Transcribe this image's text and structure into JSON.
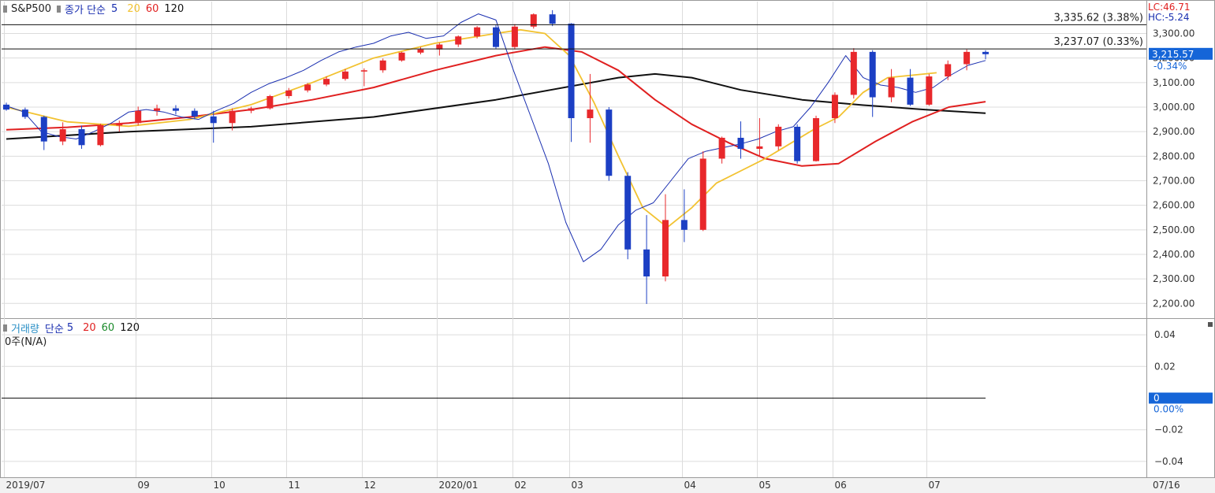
{
  "legend_price": {
    "symbol": "S&P500",
    "ma_label": "종가 단순",
    "ma5": "5",
    "ma20": "20",
    "ma60": "60",
    "ma120": "120"
  },
  "legend_volume": {
    "label": "거래량",
    "ma_label": "단순",
    "ma5": "5",
    "ma20": "20",
    "ma60": "60",
    "ma120": "120",
    "value_note": "0주(N/A)"
  },
  "header_right": {
    "lc": "LC:46.71",
    "hc": "HC:-5.24"
  },
  "colors": {
    "up": "#e8282b",
    "down": "#1c3fc4",
    "ma5": "#1a2fb0",
    "ma20": "#f2c230",
    "ma60": "#e02020",
    "ma120": "#101010",
    "grid": "#dcdcdc",
    "current_badge": "#1565d8",
    "axis_text": "#333333"
  },
  "chart_data": [
    {
      "type": "candlestick",
      "title": "S&P500",
      "x_axis_labels": [
        "2019/07",
        "09",
        "10",
        "11",
        "12",
        "2020/01",
        "02",
        "03",
        "04",
        "05",
        "06",
        "07"
      ],
      "x_axis_current": "07/16",
      "y_ticks": [
        3300,
        3200,
        3100,
        3000,
        2900,
        2800,
        2700,
        2600,
        2500,
        2400,
        2300,
        2200
      ],
      "y_tick_labels": [
        "3,300.00",
        "3,200.00",
        "3,100.00",
        "3,000.00",
        "2,900.00",
        "2,800.00",
        "2,700.00",
        "2,600.00",
        "2,500.00",
        "2,400.00",
        "2,300.00",
        "2,200.00"
      ],
      "ylim": [
        2140,
        3430
      ],
      "grid": true,
      "ohlc_approx_weekly": [
        [
          "2019/07",
          3010,
          3018,
          2985,
          2990
        ],
        [
          "",
          2990,
          2998,
          2952,
          2960
        ],
        [
          "",
          2960,
          2965,
          2825,
          2860
        ],
        [
          "",
          2860,
          2938,
          2845,
          2910
        ],
        [
          "",
          2910,
          2925,
          2830,
          2845
        ],
        [
          "",
          2845,
          2932,
          2840,
          2925
        ],
        [
          "",
          2925,
          2945,
          2900,
          2935
        ],
        [
          "09",
          2935,
          3002,
          2925,
          2985
        ],
        [
          "",
          2985,
          3010,
          2965,
          2995
        ],
        [
          "",
          2995,
          3008,
          2970,
          2985
        ],
        [
          "",
          2985,
          2995,
          2950,
          2962
        ],
        [
          "10",
          2962,
          2985,
          2855,
          2935
        ],
        [
          "",
          2935,
          2995,
          2905,
          2985
        ],
        [
          "",
          2985,
          3002,
          2975,
          2995
        ],
        [
          "",
          2995,
          3050,
          2990,
          3045
        ],
        [
          "11",
          3045,
          3078,
          3035,
          3068
        ],
        [
          "",
          3068,
          3098,
          3060,
          3092
        ],
        [
          "",
          3092,
          3125,
          3085,
          3115
        ],
        [
          "",
          3115,
          3155,
          3108,
          3145
        ],
        [
          "12",
          3145,
          3158,
          3085,
          3150
        ],
        [
          "",
          3150,
          3198,
          3140,
          3190
        ],
        [
          "",
          3190,
          3225,
          3185,
          3222
        ],
        [
          "",
          3222,
          3245,
          3215,
          3235
        ],
        [
          "2020/01",
          3235,
          3262,
          3210,
          3255
        ],
        [
          "",
          3255,
          3292,
          3245,
          3288
        ],
        [
          "",
          3288,
          3330,
          3280,
          3325
        ],
        [
          "",
          3325,
          3335,
          3238,
          3245
        ],
        [
          "02",
          3245,
          3338,
          3235,
          3328
        ],
        [
          "",
          3328,
          3382,
          3320,
          3378
        ],
        [
          "",
          3378,
          3395,
          3330,
          3340
        ],
        [
          "03",
          3340,
          3342,
          2858,
          2955
        ],
        [
          "",
          2955,
          3135,
          2855,
          2990
        ],
        [
          "",
          2990,
          3000,
          2700,
          2720
        ],
        [
          "",
          2720,
          2735,
          2380,
          2420
        ],
        [
          "",
          2420,
          2560,
          2198,
          2310
        ],
        [
          "",
          2310,
          2645,
          2290,
          2540
        ],
        [
          "04",
          2540,
          2665,
          2450,
          2500
        ],
        [
          "",
          2500,
          2820,
          2495,
          2790
        ],
        [
          "",
          2790,
          2880,
          2770,
          2875
        ],
        [
          "",
          2875,
          2942,
          2790,
          2830
        ],
        [
          "05",
          2830,
          2955,
          2800,
          2840
        ],
        [
          "",
          2840,
          2930,
          2825,
          2920
        ],
        [
          "",
          2920,
          2930,
          2770,
          2780
        ],
        [
          "",
          2780,
          2965,
          2778,
          2955
        ],
        [
          "06",
          2955,
          3060,
          2935,
          3050
        ],
        [
          "",
          3050,
          3240,
          3035,
          3225
        ],
        [
          "",
          3225,
          3232,
          2960,
          3040
        ],
        [
          "",
          3040,
          3155,
          3020,
          3120
        ],
        [
          "",
          3120,
          3155,
          3005,
          3010
        ],
        [
          "07",
          3010,
          3135,
          3005,
          3125
        ],
        [
          "",
          3125,
          3190,
          3110,
          3175
        ],
        [
          "",
          3175,
          3235,
          3150,
          3225
        ],
        [
          "07/16",
          3225,
          3232,
          3195,
          3215.57
        ]
      ],
      "ma5": [
        [
          0,
          3005
        ],
        [
          2,
          2980
        ],
        [
          4,
          2900
        ],
        [
          6,
          2880
        ],
        [
          8,
          2870
        ],
        [
          10,
          2900
        ],
        [
          12,
          2935
        ],
        [
          14,
          2980
        ],
        [
          16,
          2990
        ],
        [
          18,
          2980
        ],
        [
          20,
          2960
        ],
        [
          22,
          2950
        ],
        [
          24,
          2985
        ],
        [
          26,
          3015
        ],
        [
          28,
          3060
        ],
        [
          30,
          3095
        ],
        [
          32,
          3120
        ],
        [
          34,
          3150
        ],
        [
          36,
          3190
        ],
        [
          38,
          3225
        ],
        [
          40,
          3245
        ],
        [
          42,
          3260
        ],
        [
          44,
          3290
        ],
        [
          46,
          3305
        ],
        [
          48,
          3280
        ],
        [
          50,
          3290
        ],
        [
          52,
          3345
        ],
        [
          54,
          3380
        ],
        [
          56,
          3355
        ],
        [
          58,
          3150
        ],
        [
          60,
          2960
        ],
        [
          62,
          2770
        ],
        [
          64,
          2530
        ],
        [
          66,
          2370
        ],
        [
          68,
          2420
        ],
        [
          70,
          2520
        ],
        [
          72,
          2580
        ],
        [
          74,
          2610
        ],
        [
          76,
          2700
        ],
        [
          78,
          2790
        ],
        [
          80,
          2820
        ],
        [
          82,
          2835
        ],
        [
          84,
          2850
        ],
        [
          86,
          2870
        ],
        [
          88,
          2900
        ],
        [
          90,
          2920
        ],
        [
          92,
          3000
        ],
        [
          94,
          3100
        ],
        [
          96,
          3210
        ],
        [
          98,
          3120
        ],
        [
          100,
          3090
        ],
        [
          102,
          3080
        ],
        [
          104,
          3060
        ],
        [
          106,
          3080
        ],
        [
          108,
          3130
        ],
        [
          110,
          3170
        ],
        [
          112,
          3190
        ]
      ],
      "ma20": [
        [
          0,
          3000
        ],
        [
          10,
          2940
        ],
        [
          20,
          2922
        ],
        [
          30,
          2950
        ],
        [
          40,
          3010
        ],
        [
          50,
          3100
        ],
        [
          60,
          3200
        ],
        [
          70,
          3260
        ],
        [
          80,
          3300
        ],
        [
          84,
          3315
        ],
        [
          88,
          3300
        ],
        [
          92,
          3210
        ],
        [
          96,
          3020
        ],
        [
          100,
          2800
        ],
        [
          104,
          2590
        ],
        [
          108,
          2510
        ],
        [
          112,
          2590
        ],
        [
          116,
          2690
        ],
        [
          120,
          2740
        ],
        [
          124,
          2790
        ],
        [
          128,
          2850
        ],
        [
          132,
          2910
        ],
        [
          136,
          2960
        ],
        [
          140,
          3060
        ],
        [
          144,
          3120
        ],
        [
          148,
          3130
        ],
        [
          152,
          3140
        ]
      ],
      "ma60": [
        [
          0,
          2908
        ],
        [
          10,
          2918
        ],
        [
          20,
          2935
        ],
        [
          30,
          2960
        ],
        [
          40,
          2990
        ],
        [
          50,
          3030
        ],
        [
          60,
          3080
        ],
        [
          70,
          3150
        ],
        [
          80,
          3210
        ],
        [
          88,
          3245
        ],
        [
          94,
          3225
        ],
        [
          100,
          3150
        ],
        [
          106,
          3030
        ],
        [
          112,
          2930
        ],
        [
          118,
          2855
        ],
        [
          124,
          2790
        ],
        [
          130,
          2760
        ],
        [
          136,
          2770
        ],
        [
          142,
          2860
        ],
        [
          148,
          2940
        ],
        [
          154,
          3000
        ],
        [
          160,
          3022
        ]
      ],
      "ma120": [
        [
          0,
          2870
        ],
        [
          20,
          2900
        ],
        [
          40,
          2920
        ],
        [
          60,
          2960
        ],
        [
          80,
          3030
        ],
        [
          100,
          3120
        ],
        [
          106,
          3135
        ],
        [
          112,
          3120
        ],
        [
          120,
          3070
        ],
        [
          130,
          3030
        ],
        [
          140,
          3008
        ],
        [
          150,
          2990
        ],
        [
          160,
          2975
        ]
      ],
      "horizontal_lines": [
        {
          "value": 3335.62,
          "label": "3,335.62 (3.38%)"
        },
        {
          "value": 3237.07,
          "label": "3,237.07 (0.33%)"
        }
      ],
      "current_value": {
        "value": 3215.57,
        "label": "3,215.57",
        "change": "-0.34%"
      }
    },
    {
      "type": "bar",
      "title": "거래량",
      "y_ticks": [
        0.04,
        0.02,
        0,
        -0.02,
        -0.04
      ],
      "y_tick_labels": [
        "0.04",
        "0.02",
        "0",
        "−0.02",
        "−0.04"
      ],
      "ylim": [
        -0.05,
        0.05
      ],
      "grid": true,
      "values": [],
      "zero_line": 0,
      "current_value": {
        "label": "0",
        "change": "0.00%"
      }
    }
  ]
}
